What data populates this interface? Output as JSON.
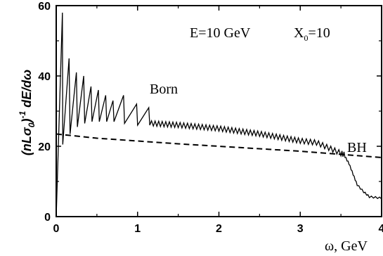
{
  "chart_data": {
    "type": "line",
    "ylabel_parts": {
      "open": "(",
      "n": "nLσ",
      "sub0": "0",
      "close": ")",
      "sup": "-1",
      "rest": " dE/dω"
    },
    "xlabel": "ω, GeV",
    "xlim": [
      0,
      4
    ],
    "ylim": [
      0,
      60
    ],
    "x_ticks": [
      "0",
      "1",
      "2",
      "3",
      "4"
    ],
    "y_ticks": [
      "0",
      "20",
      "40",
      "60"
    ],
    "annotations": {
      "energy": "E=10 GeV",
      "x0_main": "X",
      "x0_sub": "0",
      "x0_val": "=10",
      "born": "Born",
      "bh": "BH"
    },
    "series": [
      {
        "name": "Born",
        "style": "solid",
        "sawtooth_peaks": [
          {
            "x": 0.08,
            "drop": 20.5,
            "peak": 58
          },
          {
            "x": 0.17,
            "drop": 23.5,
            "peak": 45
          },
          {
            "x": 0.26,
            "drop": 25.5,
            "peak": 41
          },
          {
            "x": 0.35,
            "drop": 26.5,
            "peak": 40
          },
          {
            "x": 0.44,
            "drop": 27,
            "peak": 37
          },
          {
            "x": 0.53,
            "drop": 27,
            "peak": 36
          },
          {
            "x": 0.62,
            "drop": 27,
            "peak": 34.5
          },
          {
            "x": 0.71,
            "drop": 27,
            "peak": 33
          },
          {
            "x": 0.84,
            "drop": 26.5,
            "peak": 34.5
          },
          {
            "x": 1.0,
            "drop": 26,
            "peak": 32
          },
          {
            "x": 1.15,
            "drop": 26,
            "peak": 31
          }
        ],
        "tail": [
          [
            1.15,
            26
          ],
          [
            1.5,
            25.5
          ],
          [
            2.0,
            24.5
          ],
          [
            2.5,
            23
          ],
          [
            3.0,
            21
          ],
          [
            3.2,
            20.5
          ],
          [
            3.3,
            19.5
          ],
          [
            3.4,
            18.5
          ],
          [
            3.5,
            17.5
          ],
          [
            3.55,
            17
          ],
          [
            3.6,
            15
          ],
          [
            3.65,
            12
          ],
          [
            3.7,
            9
          ],
          [
            3.78,
            7
          ],
          [
            3.85,
            5.6
          ],
          [
            4.0,
            5.2
          ]
        ]
      },
      {
        "name": "BH",
        "style": "dashed",
        "points": [
          [
            0,
            23.5
          ],
          [
            0.5,
            22.3
          ],
          [
            1.0,
            21.5
          ],
          [
            1.5,
            20.7
          ],
          [
            2.0,
            20.0
          ],
          [
            2.5,
            19.3
          ],
          [
            3.0,
            18.6
          ],
          [
            3.5,
            17.7
          ],
          [
            4.0,
            16.8
          ]
        ]
      }
    ]
  }
}
